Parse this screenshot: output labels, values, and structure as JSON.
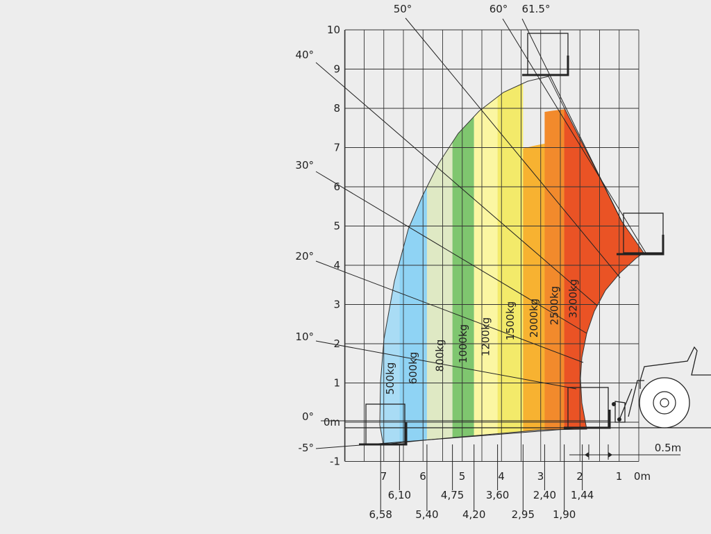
{
  "chart_data": {
    "type": "area",
    "title": "",
    "xlabel": "",
    "ylabel": "",
    "xlim": [
      7.5,
      0
    ],
    "ylim": [
      -1,
      10
    ],
    "grid": true,
    "x_ticks": [
      {
        "label": "7",
        "value": 7
      },
      {
        "label": "6",
        "value": 6
      },
      {
        "label": "5",
        "value": 5
      },
      {
        "label": "4",
        "value": 4
      },
      {
        "label": "3",
        "value": 3
      },
      {
        "label": "2",
        "value": 2
      },
      {
        "label": "1",
        "value": 1
      },
      {
        "label": "0m",
        "value": 0
      }
    ],
    "y_ticks": [
      {
        "label": "10",
        "value": 10
      },
      {
        "label": "9",
        "value": 9
      },
      {
        "label": "8",
        "value": 8
      },
      {
        "label": "7",
        "value": 7
      },
      {
        "label": "6",
        "value": 6
      },
      {
        "label": "5",
        "value": 5
      },
      {
        "label": "4",
        "value": 4
      },
      {
        "label": "3",
        "value": 3
      },
      {
        "label": "2",
        "value": 2
      },
      {
        "label": "1",
        "value": 1
      },
      {
        "label": "0m",
        "value": 0
      },
      {
        "label": "-1",
        "value": -1
      }
    ],
    "series": [
      {
        "name": "500kg",
        "x_from": 6.58,
        "x_to": 6.1,
        "color": "#a9dcf5"
      },
      {
        "name": "600kg",
        "x_from": 6.1,
        "x_to": 5.4,
        "color": "#8fd3f4"
      },
      {
        "name": "800kg",
        "x_from": 5.4,
        "x_to": 4.75,
        "color": "#dfe9c4"
      },
      {
        "name": "1000kg",
        "x_from": 4.75,
        "x_to": 4.2,
        "color": "#7fc66f"
      },
      {
        "name": "1200kg",
        "x_from": 4.2,
        "x_to": 3.6,
        "color": "#fbf6a2"
      },
      {
        "name": "1500kg",
        "x_from": 3.6,
        "x_to": 2.95,
        "color": "#f3ea6a"
      },
      {
        "name": "2000kg",
        "x_from": 2.95,
        "x_to": 2.4,
        "color": "#f7b231"
      },
      {
        "name": "2500kg",
        "x_from": 2.4,
        "x_to": 1.9,
        "color": "#f28a2c"
      },
      {
        "name": "3200kg",
        "x_from": 1.9,
        "x_to": 1.44,
        "color": "#ea5325"
      }
    ],
    "reach_distances": [
      "6,58",
      "6,10",
      "5,40",
      "4,75",
      "4,20",
      "3,60",
      "2,95",
      "2,40",
      "1,90",
      "1,44"
    ],
    "boom_angles": [
      "-5°",
      "0°",
      "10°",
      "20°",
      "30°",
      "40°",
      "50°",
      "60°",
      "61.5°"
    ],
    "annotations": [
      "0.5m"
    ]
  }
}
